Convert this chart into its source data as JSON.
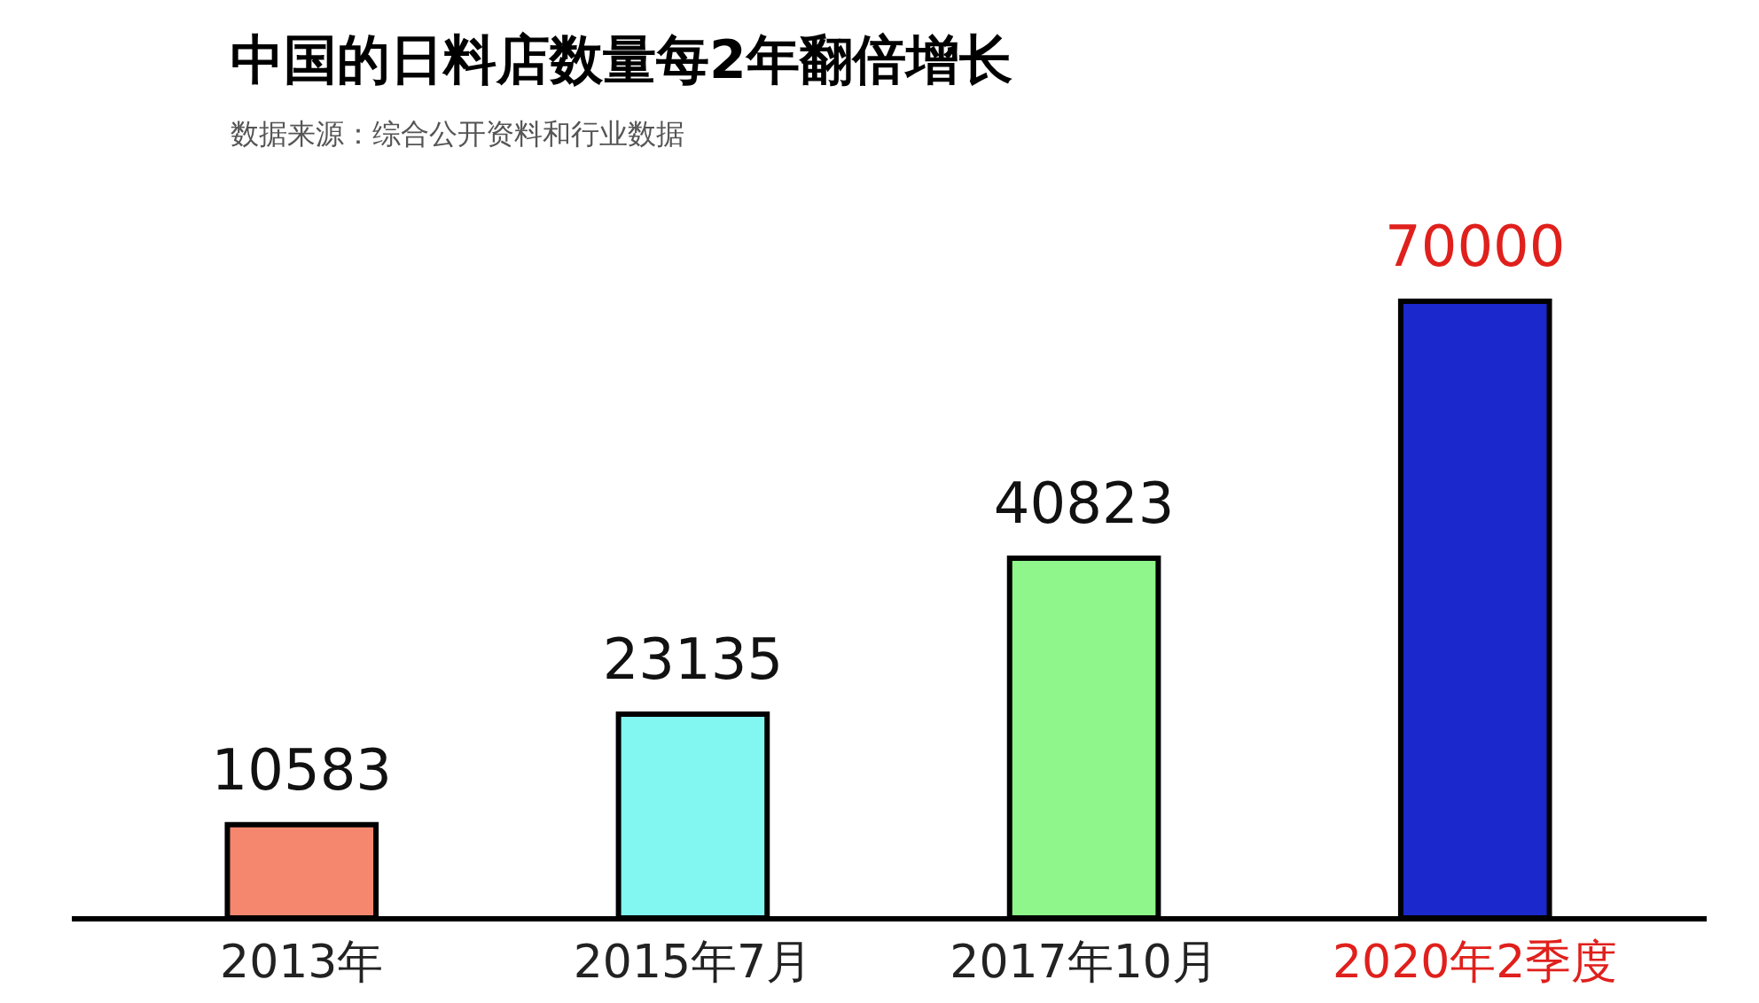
{
  "chart_data": {
    "type": "bar",
    "title": "中国的日料店数量每2年翻倍增长",
    "subtitle": "数据来源：综合公开资料和行业数据",
    "categories": [
      "2013年",
      "2015年7月",
      "2017年10月",
      "2020年2季度"
    ],
    "values": [
      10583,
      23135,
      40823,
      70000
    ],
    "colors": [
      "#f4876e",
      "#82f6f0",
      "#8ef68a",
      "#1a28cc"
    ],
    "data_labels": true
  }
}
